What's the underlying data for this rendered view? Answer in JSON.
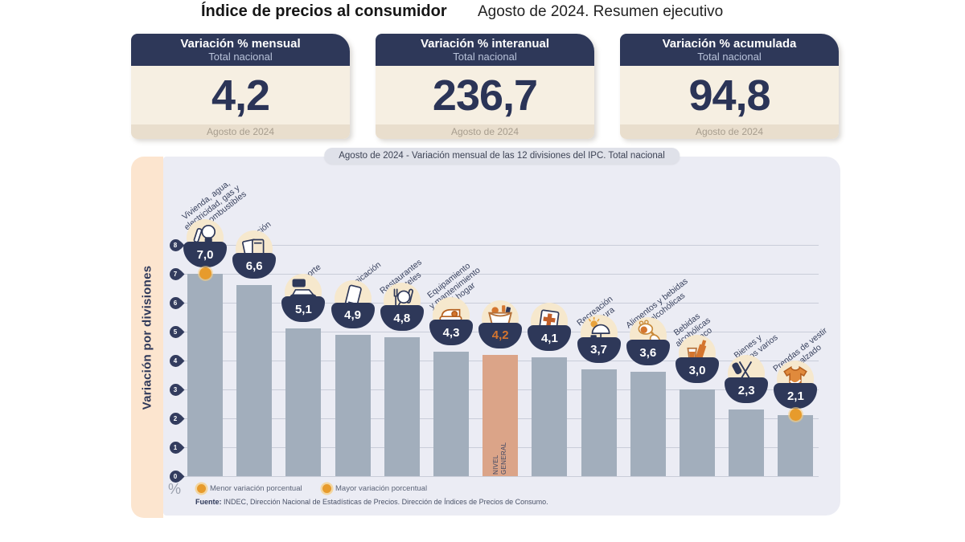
{
  "page": {
    "title": "Índice de precios al consumidor",
    "subtitle": "Agosto de 2024. Resumen ejecutivo"
  },
  "kpis": [
    {
      "title": "Variación % mensual",
      "scope": "Total nacional",
      "value": "4,2",
      "period": "Agosto de 2024"
    },
    {
      "title": "Variación % interanual",
      "scope": "Total nacional",
      "value": "236,7",
      "period": "Agosto de 2024"
    },
    {
      "title": "Variación % acumulada",
      "scope": "Total nacional",
      "value": "94,8",
      "period": "Agosto de 2024"
    }
  ],
  "chart": {
    "side_label": "Variación por divisiones",
    "title": "Agosto de 2024 - Variación mensual de las 12 divisiones del IPC. Total nacional",
    "unit_label": "%",
    "legend": [
      {
        "label": "Menor variación porcentual",
        "color": "#e79b2c"
      },
      {
        "label": "Mayor variación porcentual",
        "color": "#e79b2c"
      }
    ],
    "source_label": "Fuente:",
    "source_text": " INDEC, Dirección Nacional de Estadísticas de Precios. Dirección de Índices de Precios de Consumo."
  },
  "chart_data": {
    "type": "bar",
    "title": "Agosto de 2024 - Variación mensual de las 12 divisiones del IPC. Total nacional",
    "xlabel": "",
    "ylabel": "Variación por divisiones",
    "ylim": [
      0,
      8
    ],
    "yticks": [
      0,
      1,
      2,
      3,
      4,
      5,
      6,
      7,
      8
    ],
    "grid": true,
    "unit": "%",
    "categories": [
      "Vivienda, agua, electricidad, gas y otros combustibles",
      "Educación",
      "Transporte",
      "Comunicación",
      "Restaurantes y hoteles",
      "Equipamiento y mantenimiento del hogar",
      "Nivel general",
      "Salud",
      "Recreación y cultura",
      "Alimentos y bebidas no alcohólicas",
      "Bebidas alcohólicas y tabaco",
      "Bienes y servicios varios",
      "Prendas de vestir y calzado"
    ],
    "values": [
      7.0,
      6.6,
      5.1,
      4.9,
      4.8,
      4.3,
      4.2,
      4.1,
      3.7,
      3.6,
      3.0,
      2.3,
      2.1
    ],
    "highlight_index": 6,
    "markers": [
      {
        "index": 0,
        "type": "mayor",
        "label": "Mayor variación porcentual"
      },
      {
        "index": 12,
        "type": "menor",
        "label": "Menor variación porcentual"
      }
    ],
    "bars": [
      {
        "label_lines": "Vivienda, agua,\nelectricidad, gas y\notros combustibles",
        "display": "7,0",
        "value": 7.0,
        "icon": "housing-utilities-icon"
      },
      {
        "label_lines": "Educación",
        "display": "6,6",
        "value": 6.6,
        "icon": "education-icon"
      },
      {
        "label_lines": "Transporte",
        "display": "5,1",
        "value": 5.1,
        "icon": "transport-icon"
      },
      {
        "label_lines": "Comunicación",
        "display": "4,9",
        "value": 4.9,
        "icon": "communication-icon"
      },
      {
        "label_lines": "Restaurantes\ny hoteles",
        "display": "4,8",
        "value": 4.8,
        "icon": "restaurants-hotels-icon"
      },
      {
        "label_lines": "Equipamiento\ny mantenimiento\ndel hogar",
        "display": "4,3",
        "value": 4.3,
        "icon": "home-equipment-icon"
      },
      {
        "label_lines": "",
        "display": "4,2",
        "value": 4.2,
        "icon": "general-level-basket-icon",
        "highlight": true,
        "bar_text": "NIVEL\nGENERAL"
      },
      {
        "label_lines": "Salud",
        "display": "4,1",
        "value": 4.1,
        "icon": "health-icon"
      },
      {
        "label_lines": "Recreación\ny cultura",
        "display": "3,7",
        "value": 3.7,
        "icon": "recreation-culture-icon"
      },
      {
        "label_lines": "Alimentos y bebidas\nno alcohólicas",
        "display": "3,6",
        "value": 3.6,
        "icon": "food-beverages-icon"
      },
      {
        "label_lines": "Bebidas\nalcohólicas\ny tabaco",
        "display": "3,0",
        "value": 3.0,
        "icon": "alcohol-tobacco-icon"
      },
      {
        "label_lines": "Bienes y\nservicios varios",
        "display": "2,3",
        "value": 2.3,
        "icon": "misc-goods-services-icon"
      },
      {
        "label_lines": "Prendas de vestir\ny calzado",
        "display": "2,1",
        "value": 2.1,
        "icon": "clothing-footwear-icon"
      }
    ]
  },
  "colors": {
    "navy": "#2e3859",
    "accent_orange": "#e79b2c",
    "value_orange": "#d4752e",
    "bar": "#a2aebc",
    "bar_highlight": "#dba488",
    "panel": "#ebecf4",
    "strip": "#fce5cf",
    "kpi_body": "#f6efe2",
    "kpi_footer": "#e9decd"
  }
}
